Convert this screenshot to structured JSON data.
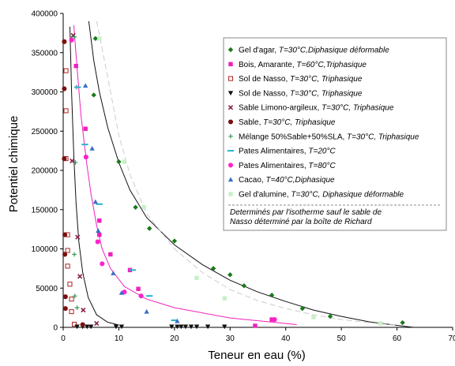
{
  "chart_data": {
    "type": "scatter",
    "xlabel": "Teneur en eau (%)",
    "ylabel": "Potentiel chimique",
    "xlim": [
      0,
      70
    ],
    "ylim": [
      0,
      400000
    ],
    "x_ticks": [
      0,
      10,
      20,
      30,
      40,
      50,
      60,
      70
    ],
    "y_ticks": [
      0,
      50000,
      100000,
      150000,
      200000,
      250000,
      300000,
      350000,
      400000
    ],
    "grid": false,
    "legend_position": "top-right",
    "annotation": [
      "Determinés par l'isotherme sauf le sable de",
      "Nasso déterminé par la boîte de Richard"
    ],
    "series": [
      {
        "name": "Gel d'agar, T=30°C,Diphasique déformable",
        "name_parts": [
          "Gel d'agar, ",
          "T=30°C,Diphasique déformable"
        ],
        "marker": "diamond",
        "color": "#1a7a1a",
        "points": [
          [
            5.8,
            368000
          ],
          [
            5.5,
            296000
          ],
          [
            10.0,
            211000
          ],
          [
            13.0,
            153000
          ],
          [
            15.5,
            126000
          ],
          [
            20.0,
            110000
          ],
          [
            27.0,
            75000
          ],
          [
            30.0,
            67000
          ],
          [
            32.5,
            53000
          ],
          [
            37.5,
            41000
          ],
          [
            43.0,
            24000
          ],
          [
            48.0,
            14000
          ],
          [
            61.0,
            6000
          ]
        ]
      },
      {
        "name": "Bois, Amarante, T=60°C,Triphasique",
        "name_parts": [
          "Bois, Amarante, ",
          "T=60°C,Triphasique"
        ],
        "marker": "square",
        "color": "#ee22bb",
        "points": [
          [
            2.3,
            333000
          ],
          [
            4.0,
            253000
          ],
          [
            6.5,
            136000
          ],
          [
            6.5,
            118000
          ],
          [
            8.5,
            93000
          ],
          [
            12.0,
            73000
          ],
          [
            13.5,
            49000
          ],
          [
            34.5,
            2000
          ],
          [
            37.5,
            10000
          ]
        ]
      },
      {
        "name": "Sol de Nasso, T=30°C, Triphasique",
        "name_parts": [
          "Sol de Nasso, ",
          "T=30°C, Triphasique"
        ],
        "marker": "square-open",
        "color": "#aa2222",
        "points": [
          [
            0.5,
            327000
          ],
          [
            0.5,
            276000
          ],
          [
            0.5,
            215000
          ],
          [
            0.8,
            118000
          ],
          [
            0.8,
            98000
          ],
          [
            0.8,
            78000
          ],
          [
            1.2,
            55000
          ],
          [
            1.5,
            36000
          ],
          [
            1.5,
            20000
          ],
          [
            2.0,
            4000
          ]
        ]
      },
      {
        "name": "Sol de Nasso, T=30°C, Triphasique",
        "name_parts": [
          "Sol de Nasso, ",
          "T=30°C, Triphasique"
        ],
        "marker": "triangle-down",
        "color": "#111111",
        "points": [
          [
            2.5,
            1000
          ],
          [
            3.5,
            1000
          ],
          [
            4.3,
            1000
          ],
          [
            5.0,
            1000
          ],
          [
            9.5,
            1000
          ],
          [
            10.5,
            1000
          ],
          [
            19.5,
            1000
          ],
          [
            20.5,
            1000
          ],
          [
            21.2,
            1000
          ],
          [
            22.0,
            1000
          ],
          [
            23.0,
            1000
          ],
          [
            24.0,
            1000
          ],
          [
            26.0,
            1000
          ],
          [
            29.0,
            1000
          ]
        ]
      },
      {
        "name": "Sable Limono-argileux, T=30°C, Triphasique",
        "name_parts": [
          "Sable Limono-argileux, ",
          "T=30°C, Triphasique"
        ],
        "marker": "x",
        "color": "#8a1f4a",
        "points": [
          [
            1.8,
            372000
          ],
          [
            1.6,
            212000
          ],
          [
            2.6,
            115000
          ],
          [
            3.0,
            65000
          ],
          [
            3.6,
            22000
          ],
          [
            6.0,
            5000
          ]
        ]
      },
      {
        "name": "Sable, T=30°C, Triphasique",
        "name_parts": [
          "Sable, ",
          "T=30°C, Triphasique"
        ],
        "marker": "circle",
        "color": "#7a1010",
        "points": [
          [
            0.2,
            364000
          ],
          [
            0.2,
            304000
          ],
          [
            0.2,
            215000
          ],
          [
            0.3,
            118000
          ],
          [
            0.3,
            93000
          ],
          [
            0.4,
            39000
          ],
          [
            0.4,
            24000
          ],
          [
            3.5,
            3500
          ]
        ]
      },
      {
        "name": "Mélange 50%Sable+50%SLA, T=30°C, Triphasique",
        "name_parts": [
          "Mélange 50%Sable+50%SLA, ",
          "T=30°C, Triphasique"
        ],
        "marker": "plus",
        "color": "#3a9a5a",
        "points": [
          [
            2.0,
            370000
          ],
          [
            2.4,
            306000
          ],
          [
            2.2,
            210000
          ],
          [
            2.0,
            93000
          ],
          [
            2.1,
            40000
          ],
          [
            2.5,
            25000
          ]
        ]
      },
      {
        "name": "Pates Alimentaires, T=20°C",
        "name_parts": [
          "Pates Alimentaires, ",
          "T=20°C"
        ],
        "marker": "dash",
        "color": "#22b6cc",
        "points": [
          [
            2.6,
            306000
          ],
          [
            3.9,
            233000
          ],
          [
            6.5,
            157000
          ],
          [
            12.5,
            73000
          ],
          [
            15.5,
            40000
          ],
          [
            20.0,
            9000
          ]
        ]
      },
      {
        "name": "Pates Alimentaires, T=80°C",
        "name_parts": [
          "Pates Alimentaires, ",
          "T=80°C"
        ],
        "marker": "circle",
        "color": "#ff22cc",
        "points": [
          [
            1.5,
            366000
          ],
          [
            4.1,
            217000
          ],
          [
            6.2,
            109000
          ],
          [
            7.0,
            81000
          ],
          [
            11.0,
            45000
          ],
          [
            14.0,
            40000
          ],
          [
            38.0,
            10000
          ]
        ]
      },
      {
        "name": "Cacao, T=40°C,Diphasique",
        "name_parts": [
          "Cacao, ",
          "T=40°C,Diphasique"
        ],
        "marker": "triangle",
        "color": "#3a6ec8",
        "points": [
          [
            4.0,
            308000
          ],
          [
            5.2,
            228000
          ],
          [
            5.8,
            160000
          ],
          [
            6.3,
            123000
          ],
          [
            9.0,
            69000
          ],
          [
            10.5,
            44000
          ],
          [
            15.0,
            20000
          ],
          [
            20.5,
            8000
          ]
        ]
      },
      {
        "name": "Gel d'alumine, T=30°C, Diphasique déformable",
        "name_parts": [
          "Gel d'alumine, ",
          "T=30°C, Diphasique déformable"
        ],
        "marker": "square",
        "color": "#c8f0c8",
        "points": [
          [
            6.5,
            368000
          ],
          [
            11.0,
            211000
          ],
          [
            14.5,
            153000
          ],
          [
            24.0,
            63000
          ],
          [
            29.0,
            37000
          ],
          [
            45.0,
            13000
          ],
          [
            57.0,
            5000
          ]
        ]
      }
    ],
    "trend_lines": [
      {
        "color": "#111111",
        "dash": false,
        "points": [
          [
            1.2,
            383000
          ],
          [
            1.5,
            300000
          ],
          [
            1.9,
            220000
          ],
          [
            2.3,
            160000
          ],
          [
            2.8,
            110000
          ],
          [
            3.5,
            70000
          ],
          [
            4.5,
            38000
          ],
          [
            6,
            16000
          ],
          [
            8,
            6500
          ],
          [
            10,
            3000
          ]
        ]
      },
      {
        "color": "#ee22bb",
        "dash": false,
        "points": [
          [
            1.9,
            385000
          ],
          [
            2.5,
            330000
          ],
          [
            3.2,
            270000
          ],
          [
            4.2,
            210000
          ],
          [
            5,
            170000
          ],
          [
            6,
            130000
          ],
          [
            7,
            100000
          ],
          [
            8.5,
            75000
          ],
          [
            11,
            52000
          ],
          [
            15,
            36000
          ],
          [
            20,
            25000
          ],
          [
            30,
            12000
          ],
          [
            42,
            3500
          ]
        ]
      },
      {
        "color": "#111111",
        "dash": false,
        "points": [
          [
            4.6,
            390000
          ],
          [
            5.5,
            340000
          ],
          [
            6.5,
            300000
          ],
          [
            8,
            255000
          ],
          [
            10,
            210000
          ],
          [
            12,
            175000
          ],
          [
            15,
            140000
          ],
          [
            20,
            105000
          ],
          [
            25,
            80000
          ],
          [
            30,
            60000
          ],
          [
            35,
            45000
          ],
          [
            40,
            33000
          ],
          [
            45,
            22000
          ],
          [
            50,
            14000
          ],
          [
            55,
            7000
          ],
          [
            60,
            2500
          ],
          [
            63,
            0
          ]
        ]
      },
      {
        "color": "#cccccc",
        "dash": true,
        "points": [
          [
            6,
            390000
          ],
          [
            7,
            355000
          ],
          [
            8.5,
            300000
          ],
          [
            10,
            245000
          ],
          [
            12,
            195000
          ],
          [
            15,
            145000
          ],
          [
            20,
            100000
          ],
          [
            25,
            70000
          ],
          [
            30,
            48000
          ],
          [
            35,
            34000
          ],
          [
            40,
            24000
          ],
          [
            45,
            16000
          ],
          [
            50,
            10000
          ],
          [
            55,
            6000
          ],
          [
            60,
            2500
          ]
        ]
      }
    ]
  }
}
